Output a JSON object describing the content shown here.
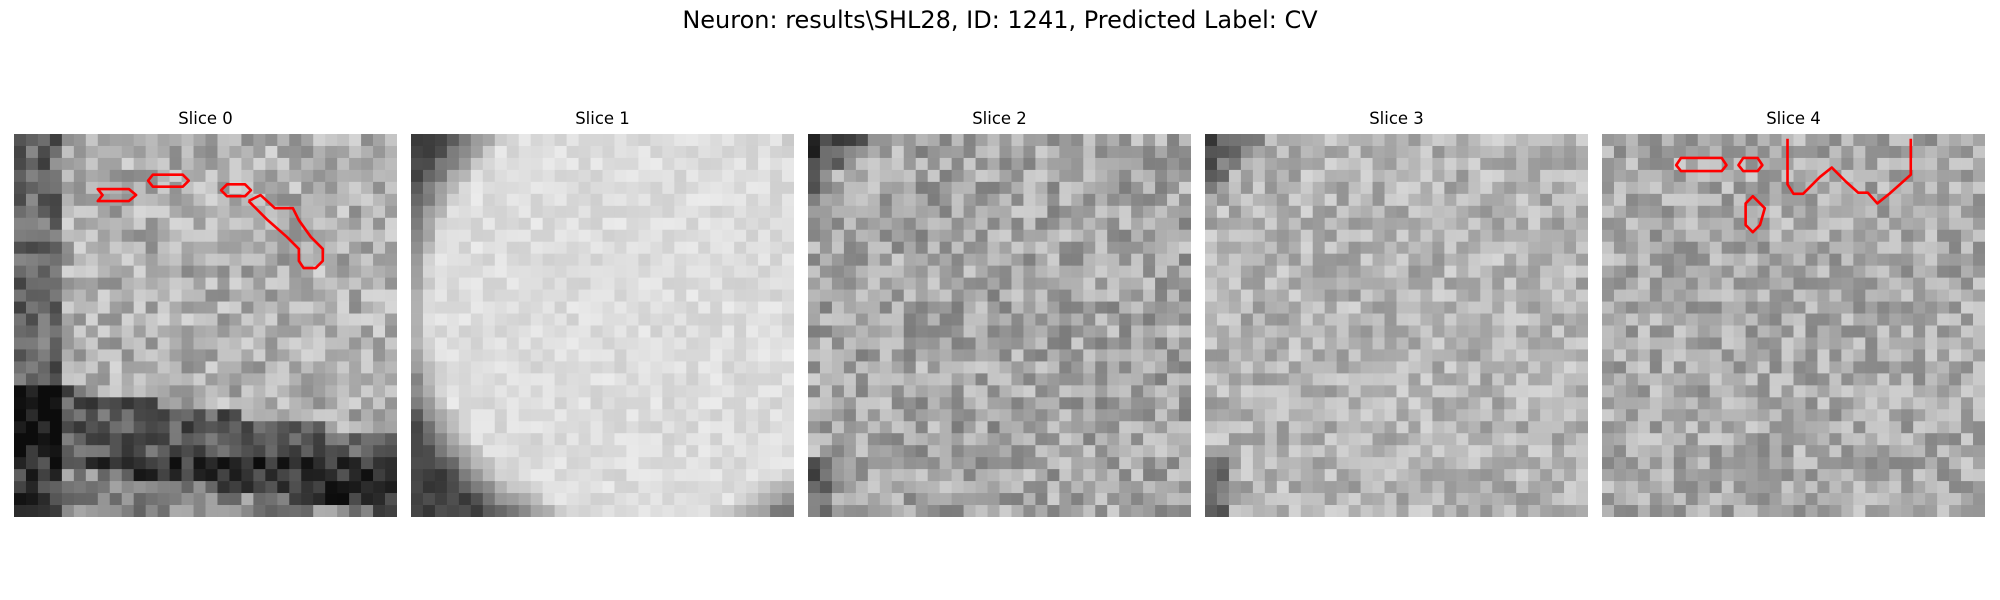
{
  "figure": {
    "title": "Neuron: results\\SHL28, ID: 1241, Predicted Label: CV"
  },
  "panels": [
    {
      "title": "Slice 0",
      "seed": 11,
      "base": 175,
      "contrast": 40,
      "feature": "dark-band"
    },
    {
      "title": "Slice 1",
      "seed": 23,
      "base": 215,
      "contrast": 14,
      "feature": "bright-disc"
    },
    {
      "title": "Slice 2",
      "seed": 37,
      "base": 165,
      "contrast": 42,
      "feature": "dark-corner"
    },
    {
      "title": "Slice 3",
      "seed": 51,
      "base": 180,
      "contrast": 34,
      "feature": "dark-corner"
    },
    {
      "title": "Slice 4",
      "seed": 67,
      "base": 170,
      "contrast": 38,
      "feature": "plain"
    }
  ],
  "style": {
    "contour_color": "#ff0000",
    "colormap": "gray"
  }
}
